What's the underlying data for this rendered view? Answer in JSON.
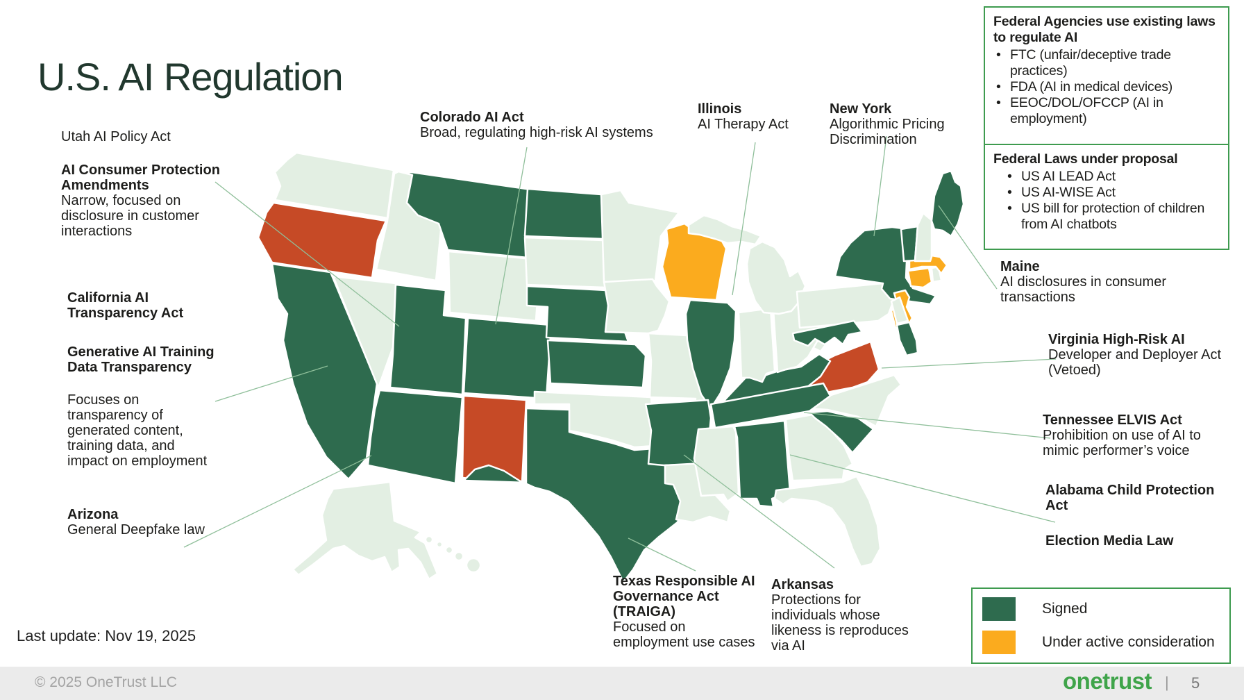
{
  "slide": {
    "title": "U.S. AI Regulation",
    "last_update": "Last update: Nov 19, 2025",
    "footer": {
      "copyright": "© 2025 OneTrust LLC",
      "brand": "onetrust",
      "separator": "|",
      "page": "5"
    }
  },
  "boxes": [
    {
      "title": "Federal Agencies use existing laws\nto regulate AI",
      "bullets": [
        "FTC (unfair/deceptive trade practices)",
        "FDA (AI in medical devices)",
        "EEOC/DOL/OFCCP (AI in employment)"
      ]
    },
    {
      "title": "Federal Laws under proposal",
      "bullets": [
        "US AI LEAD Act",
        "US AI-WISE Act",
        "US bill for protection of children from AI chatbots"
      ]
    }
  ],
  "annotations": {
    "utah": {
      "title": "",
      "body": "Utah AI Policy Act"
    },
    "consumer": {
      "title": "AI Consumer Protection\nAmendments",
      "body": "Narrow, focused on\ndisclosure in customer\ninteractions"
    },
    "california": {
      "title": "California AI\nTransparency Act",
      "body": ""
    },
    "generative": {
      "title": "Generative AI Training\nData Transparency",
      "body": ""
    },
    "ca_focus": {
      "title": "",
      "body": "Focuses on\ntransparency of\ngenerated content,\ntraining data, and\nimpact on employment"
    },
    "arizona": {
      "title": "Arizona",
      "body": "General Deepfake law"
    },
    "colorado": {
      "title": "Colorado AI Act",
      "body": "Broad, regulating high-risk AI systems"
    },
    "illinois": {
      "title": "Illinois",
      "body": "AI Therapy Act"
    },
    "newyork": {
      "title": "New York",
      "body": "Algorithmic Pricing\nDiscrimination"
    },
    "maine": {
      "title": "Maine",
      "body": "AI disclosures in consumer\ntransactions"
    },
    "virginia": {
      "title": "Virginia High-Risk AI",
      "body": "Developer and Deployer Act\n(Vetoed)"
    },
    "tennessee": {
      "title": "Tennessee ELVIS Act",
      "body": "Prohibition on use of AI to\nmimic performer’s voice"
    },
    "alabama": {
      "title": "Alabama Child Protection\nAct",
      "body": ""
    },
    "election": {
      "title": "Election Media Law",
      "body": ""
    },
    "texas": {
      "title": "Texas Responsible AI\nGovernance Act\n(TRAIGA)",
      "body": "Focused on\nemployment use cases"
    },
    "arkansas": {
      "title": "Arkansas",
      "body": "Protections for\nindividuals whose\nlikeness is reproduces\nvia AI"
    }
  },
  "legend": [
    {
      "label": "Signed",
      "key": "signed"
    },
    {
      "label": "Under active consideration",
      "key": "consideration"
    }
  ],
  "map": {
    "signed": [
      "CA",
      "AZ",
      "UT",
      "CO",
      "MT",
      "ND",
      "NE",
      "KS",
      "TX",
      "AR",
      "IL",
      "KY",
      "TN",
      "AL",
      "SC",
      "NY",
      "VT",
      "ME",
      "MD",
      "MDS"
    ],
    "consideration": [
      "WI",
      "MA",
      "CT",
      "NJ"
    ],
    "vetoed": [
      "OR",
      "NM",
      "VA"
    ],
    "none": [
      "WA",
      "ID",
      "NV",
      "WY",
      "SD",
      "MN",
      "IA",
      "MO",
      "OK",
      "LA",
      "MS",
      "GA",
      "FL",
      "NC",
      "WV",
      "OH",
      "IN",
      "MIU",
      "MIL",
      "PA",
      "NH",
      "RI",
      "DE",
      "AK",
      "HI1",
      "HI2",
      "HI3",
      "HI4",
      "HI5"
    ]
  },
  "colors": {
    "signed": "#2E6B4E",
    "consideration": "#FBAB1E",
    "vetoed": "#C64A26",
    "none": "#E3EFE3",
    "state_border": "#FFFFFF",
    "connector": "#8FBF9A",
    "box_border": "#3E9B4F",
    "brand": "#3FA44A"
  }
}
